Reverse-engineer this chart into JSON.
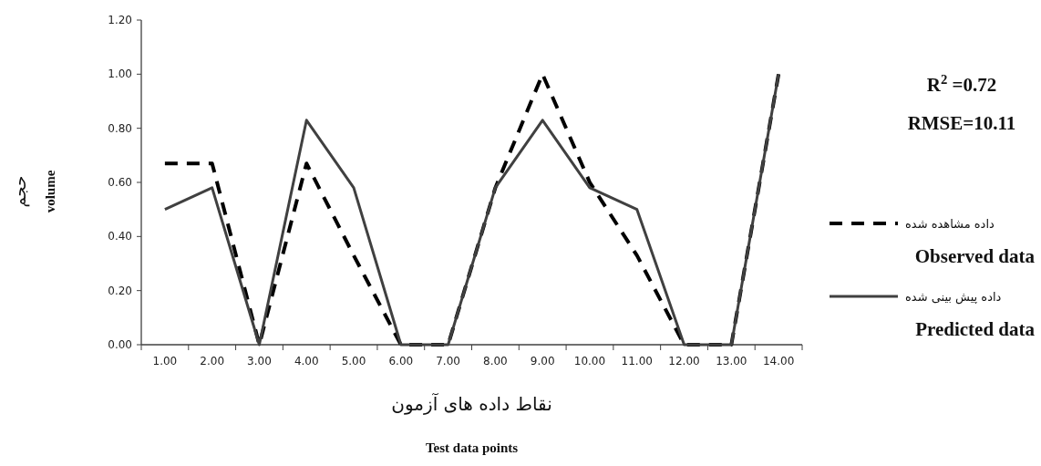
{
  "chart_data": {
    "type": "line",
    "xlabel": "نقاط داده های آزمون\nTest data points",
    "ylabel": "حجم\nvolume",
    "categories": [
      "1.00",
      "2.00",
      "3.00",
      "4.00",
      "5.00",
      "6.00",
      "7.00",
      "8.00",
      "9.00",
      "10.00",
      "11.00",
      "12.00",
      "13.00",
      "14.00"
    ],
    "series": [
      {
        "name": "داده مشاهده شده",
        "color": "#000000",
        "line_style": "dashed",
        "values": [
          0.67,
          0.67,
          0,
          0.67,
          0.33,
          0,
          0,
          0.58,
          1.0,
          0.6,
          0.33,
          0,
          0,
          1.0
        ]
      },
      {
        "name": "داده پیش بینی شده",
        "color": "#404040",
        "line_style": "solid",
        "values": [
          0.5,
          0.58,
          0,
          0.83,
          0.58,
          0,
          0,
          0.58,
          0.83,
          0.58,
          0.5,
          0,
          0,
          1.0
        ]
      }
    ],
    "ylim": [
      0,
      1.2
    ],
    "yticks": [
      {
        "value": 0,
        "label": "0.00"
      },
      {
        "value": 0.2,
        "label": "0.20"
      },
      {
        "value": 0.4,
        "label": "0.40"
      },
      {
        "value": 0.6,
        "label": "0.60"
      },
      {
        "value": 0.8,
        "label": "0.80"
      },
      {
        "value": 1.0,
        "label": "1.00"
      },
      {
        "value": 1.2,
        "label": "1.20"
      }
    ],
    "annotations": [
      "R$^{2}$ =0.72",
      "RMSE=10.11",
      "Observed data",
      "Predicted data"
    ],
    "legend": "right",
    "grid": false
  }
}
